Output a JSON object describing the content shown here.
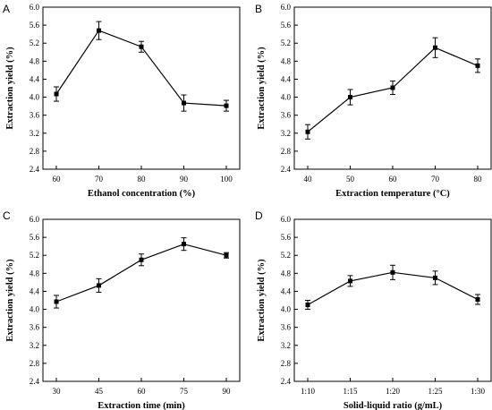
{
  "chart_data": [
    {
      "panel": "A",
      "type": "line",
      "categories": [
        "60",
        "70",
        "80",
        "90",
        "100"
      ],
      "values": [
        4.07,
        5.48,
        5.12,
        3.87,
        3.81
      ],
      "errors": [
        0.16,
        0.2,
        0.12,
        0.18,
        0.12
      ],
      "xlabel": "Ethanol concentration (%)",
      "ylabel": "Extraction yield (%)",
      "ylim": [
        2.4,
        6.0
      ],
      "yticks": [
        "2.4",
        "2.8",
        "3.2",
        "3.6",
        "4.0",
        "4.4",
        "4.8",
        "5.2",
        "5.6",
        "6.0"
      ],
      "grid": false
    },
    {
      "panel": "B",
      "type": "line",
      "categories": [
        "40",
        "50",
        "60",
        "70",
        "80"
      ],
      "values": [
        3.23,
        4.0,
        4.21,
        5.1,
        4.7
      ],
      "errors": [
        0.16,
        0.17,
        0.15,
        0.22,
        0.15
      ],
      "xlabel": "Extraction temperature (°C)",
      "ylabel": "Extraction yield (%)",
      "ylim": [
        2.4,
        6.0
      ],
      "yticks": [
        "2.4",
        "2.8",
        "3.2",
        "3.6",
        "4.0",
        "4.4",
        "4.8",
        "5.2",
        "5.6",
        "6.0"
      ],
      "grid": false
    },
    {
      "panel": "C",
      "type": "line",
      "categories": [
        "30",
        "45",
        "60",
        "75",
        "90"
      ],
      "values": [
        4.17,
        4.53,
        5.1,
        5.45,
        5.2
      ],
      "errors": [
        0.14,
        0.15,
        0.13,
        0.14,
        0.06
      ],
      "xlabel": "Extraction time (min)",
      "ylabel": "Extraction yield (%)",
      "ylim": [
        2.4,
        6.0
      ],
      "yticks": [
        "2.4",
        "2.8",
        "3.2",
        "3.6",
        "4.0",
        "4.4",
        "4.8",
        "5.2",
        "5.6",
        "6.0"
      ],
      "grid": false
    },
    {
      "panel": "D",
      "type": "line",
      "categories": [
        "1:10",
        "1:15",
        "1:20",
        "1:25",
        "1:30"
      ],
      "values": [
        4.1,
        4.63,
        4.82,
        4.7,
        4.22
      ],
      "errors": [
        0.1,
        0.12,
        0.16,
        0.15,
        0.11
      ],
      "xlabel": "Solid-liquid ratio (g/mL)",
      "ylabel": "Extraction yield (%)",
      "ylim": [
        2.4,
        6.0
      ],
      "yticks": [
        "2.4",
        "2.8",
        "3.2",
        "3.6",
        "4.0",
        "4.4",
        "4.8",
        "5.2",
        "5.6",
        "6.0"
      ],
      "grid": false
    }
  ],
  "colors": {
    "line": "#000000",
    "marker": "#000000"
  }
}
